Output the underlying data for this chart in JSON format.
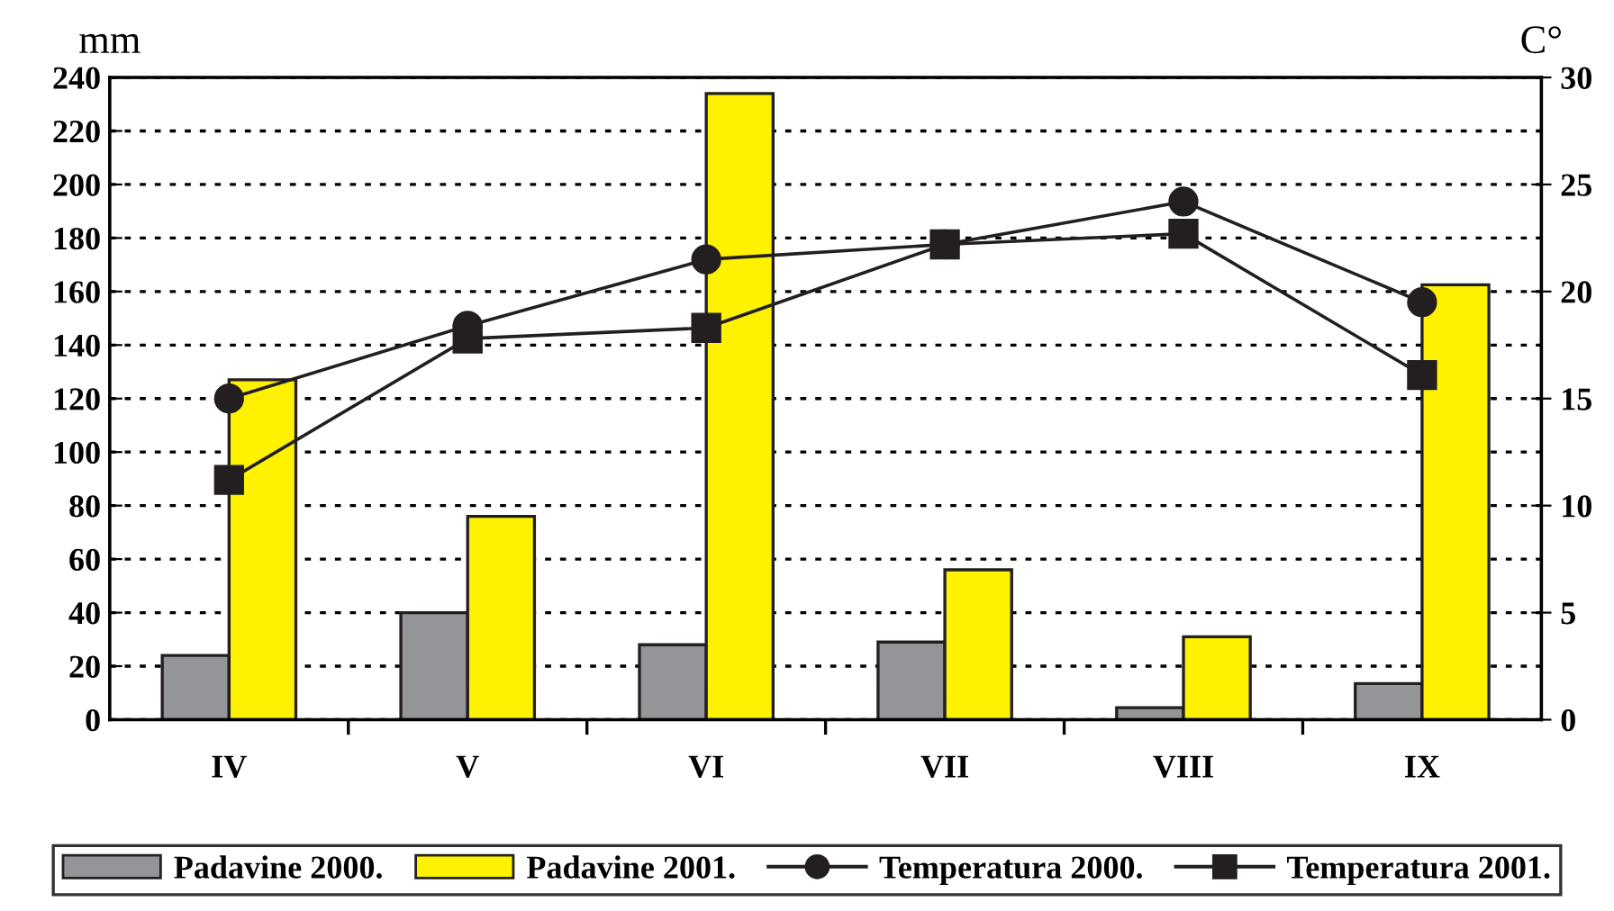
{
  "chart_data": {
    "type": "bar",
    "ylabel": "mm",
    "y2label": "C°",
    "categories": [
      "IV",
      "V",
      "VI",
      "VII",
      "VIII",
      "IX"
    ],
    "series": [
      {
        "name": "Padavine 2000.",
        "color": "#939598",
        "values": [
          24,
          40,
          28,
          29,
          4.5,
          13.5
        ]
      },
      {
        "name": "Padavine 2001.",
        "color": "#fff200",
        "values": [
          127,
          76,
          234,
          56,
          31,
          162.5
        ]
      },
      {
        "name": "Temperatura 2000.",
        "type": "line",
        "axis": "y2",
        "marker": "circle",
        "color": "#231f20",
        "values": [
          15.0,
          18.4,
          21.5,
          22.2,
          24.2,
          19.5
        ]
      },
      {
        "name": "Temperatura 2001.",
        "type": "line",
        "axis": "y2",
        "marker": "square",
        "color": "#231f20",
        "values": [
          11.2,
          17.8,
          18.3,
          22.2,
          22.7,
          16.1
        ]
      }
    ],
    "ylim": [
      0,
      240
    ],
    "yticks": [
      0,
      20,
      40,
      60,
      80,
      100,
      120,
      140,
      160,
      180,
      200,
      220,
      240
    ],
    "y2lim": [
      0,
      30
    ],
    "y2ticks": [
      0,
      5,
      10,
      15,
      20,
      25,
      30
    ],
    "grid": "y",
    "legend": "bottom"
  }
}
